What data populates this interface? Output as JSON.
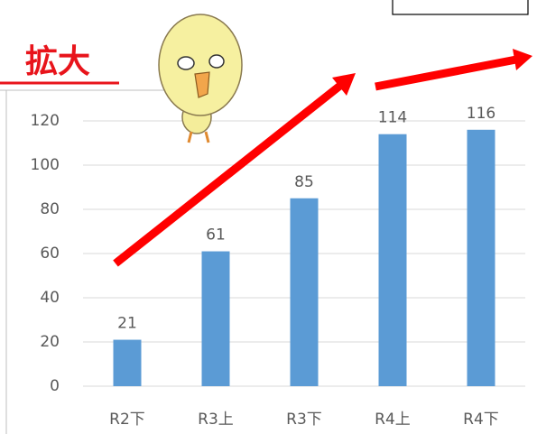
{
  "chart_data": {
    "type": "bar",
    "title": "拡大",
    "categories": [
      "R2下",
      "R3上",
      "R3下",
      "R4上",
      "R4下"
    ],
    "values": [
      21,
      61,
      85,
      114,
      116
    ],
    "color": "#5b9bd5",
    "ylim": [
      0,
      120
    ],
    "yticks": [
      0,
      20,
      40,
      60,
      80,
      100,
      120
    ],
    "grid": true
  }
}
